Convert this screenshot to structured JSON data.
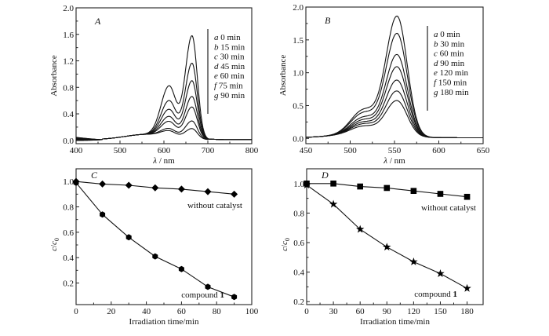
{
  "chart_data": [
    {
      "id": "A",
      "type": "line",
      "panel_label": "A",
      "xlabel_symbol": "λ",
      "xlabel_unit": " / nm",
      "ylabel": "Absorbance",
      "xlim": [
        400,
        800
      ],
      "ylim": [
        -0.05,
        2.0
      ],
      "xticks": [
        400,
        500,
        600,
        700,
        800
      ],
      "xtick_labels": [
        "400",
        "500",
        "600",
        "700",
        "800"
      ],
      "yticks": [
        0.0,
        0.4,
        0.8,
        1.2,
        1.6,
        2.0
      ],
      "ytick_labels": [
        "0.0",
        "0.4",
        "0.8",
        "1.2",
        "1.6",
        "2.0"
      ],
      "legend_position": "top-right",
      "spectral_model": {
        "peak_nm": 664,
        "shoulder_nm": 612
      },
      "series": [
        {
          "letter": "a",
          "name": "0 min",
          "peak": 1.77,
          "shoulder": 0.93
        },
        {
          "letter": "b",
          "name": "15 min",
          "peak": 1.3,
          "shoulder": 0.66
        },
        {
          "letter": "c",
          "name": "30 min",
          "peak": 1.0,
          "shoulder": 0.5
        },
        {
          "letter": "d",
          "name": "45 min",
          "peak": 0.73,
          "shoulder": 0.37
        },
        {
          "letter": "e",
          "name": "60 min",
          "peak": 0.55,
          "shoulder": 0.28
        },
        {
          "letter": "f",
          "name": "75 min",
          "peak": 0.31,
          "shoulder": 0.15
        },
        {
          "letter": "g",
          "name": "90 min",
          "peak": 0.18,
          "shoulder": 0.11
        }
      ]
    },
    {
      "id": "B",
      "type": "line",
      "panel_label": "B",
      "xlabel_symbol": "λ",
      "xlabel_unit": " / nm",
      "ylabel": "Absorbance",
      "xlim": [
        450,
        650
      ],
      "ylim": [
        -0.08,
        2.0
      ],
      "xticks": [
        450,
        500,
        550,
        600,
        650
      ],
      "xtick_labels": [
        "450",
        "500",
        "550",
        "600",
        "650"
      ],
      "yticks": [
        0.0,
        0.5,
        1.0,
        1.5,
        2.0
      ],
      "ytick_labels": [
        "0.0",
        "0.5",
        "1.0",
        "1.5",
        "2.0"
      ],
      "legend_position": "top-right",
      "spectral_model": {
        "peak_nm": 553,
        "shoulder_nm": 515
      },
      "series": [
        {
          "letter": "a",
          "name": "0 min",
          "peak": 1.87,
          "shoulder": 0.65
        },
        {
          "letter": "b",
          "name": "30 min",
          "peak": 1.6,
          "shoulder": 0.57
        },
        {
          "letter": "c",
          "name": "60 min",
          "peak": 1.27,
          "shoulder": 0.45
        },
        {
          "letter": "d",
          "name": "90 min",
          "peak": 1.08,
          "shoulder": 0.38
        },
        {
          "letter": "e",
          "name": "120 min",
          "peak": 0.87,
          "shoulder": 0.32
        },
        {
          "letter": "f",
          "name": "150 min",
          "peak": 0.7,
          "shoulder": 0.27
        },
        {
          "letter": "g",
          "name": "180 min",
          "peak": 0.55,
          "shoulder": 0.21
        }
      ]
    },
    {
      "id": "C",
      "type": "line",
      "panel_label": "C",
      "xlabel": "Irradiation time/min",
      "ylabel_main": "c",
      "ylabel_sub": "0",
      "xlim": [
        0,
        100
      ],
      "ylim": [
        0.03,
        1.1
      ],
      "xticks": [
        0,
        20,
        40,
        60,
        80,
        100
      ],
      "xtick_labels": [
        "0",
        "20",
        "40",
        "60",
        "80",
        "100"
      ],
      "yticks": [
        0.2,
        0.4,
        0.6,
        0.8,
        1.0
      ],
      "ytick_labels": [
        "0.2",
        "0.4",
        "0.6",
        "0.8",
        "1.0"
      ],
      "series": [
        {
          "name": "without catalyst",
          "marker": "diamond",
          "x": [
            0,
            15,
            30,
            45,
            60,
            75,
            90
          ],
          "y": [
            1.0,
            0.98,
            0.97,
            0.95,
            0.94,
            0.92,
            0.9
          ]
        },
        {
          "name": "compound 1",
          "name_text": "compound ",
          "name_bold": "1",
          "marker": "hexagon",
          "x": [
            0,
            15,
            30,
            45,
            60,
            75,
            90
          ],
          "y": [
            0.99,
            0.74,
            0.56,
            0.41,
            0.31,
            0.17,
            0.09
          ]
        }
      ]
    },
    {
      "id": "D",
      "type": "line",
      "panel_label": "D",
      "xlabel": "Irradiation time/min",
      "ylabel_main": "c",
      "ylabel_sub": "0",
      "xlim": [
        0,
        198
      ],
      "ylim": [
        0.18,
        1.1
      ],
      "xticks": [
        0,
        30,
        60,
        90,
        120,
        150,
        180
      ],
      "xtick_labels": [
        "0",
        "30",
        "60",
        "90",
        "120",
        "150",
        "180"
      ],
      "yticks": [
        0.2,
        0.4,
        0.6,
        0.8,
        1.0
      ],
      "ytick_labels": [
        "0.2",
        "0.4",
        "0.6",
        "0.8",
        "1.0"
      ],
      "series": [
        {
          "name": "without catalyst",
          "marker": "square",
          "x": [
            0,
            30,
            60,
            90,
            120,
            150,
            180
          ],
          "y": [
            1.0,
            1.0,
            0.98,
            0.97,
            0.95,
            0.93,
            0.91
          ]
        },
        {
          "name": "compound 1",
          "name_text": "compound ",
          "name_bold": "1",
          "marker": "star",
          "x": [
            0,
            30,
            60,
            90,
            120,
            150,
            180
          ],
          "y": [
            0.99,
            0.86,
            0.69,
            0.57,
            0.47,
            0.39,
            0.29
          ]
        }
      ]
    }
  ]
}
